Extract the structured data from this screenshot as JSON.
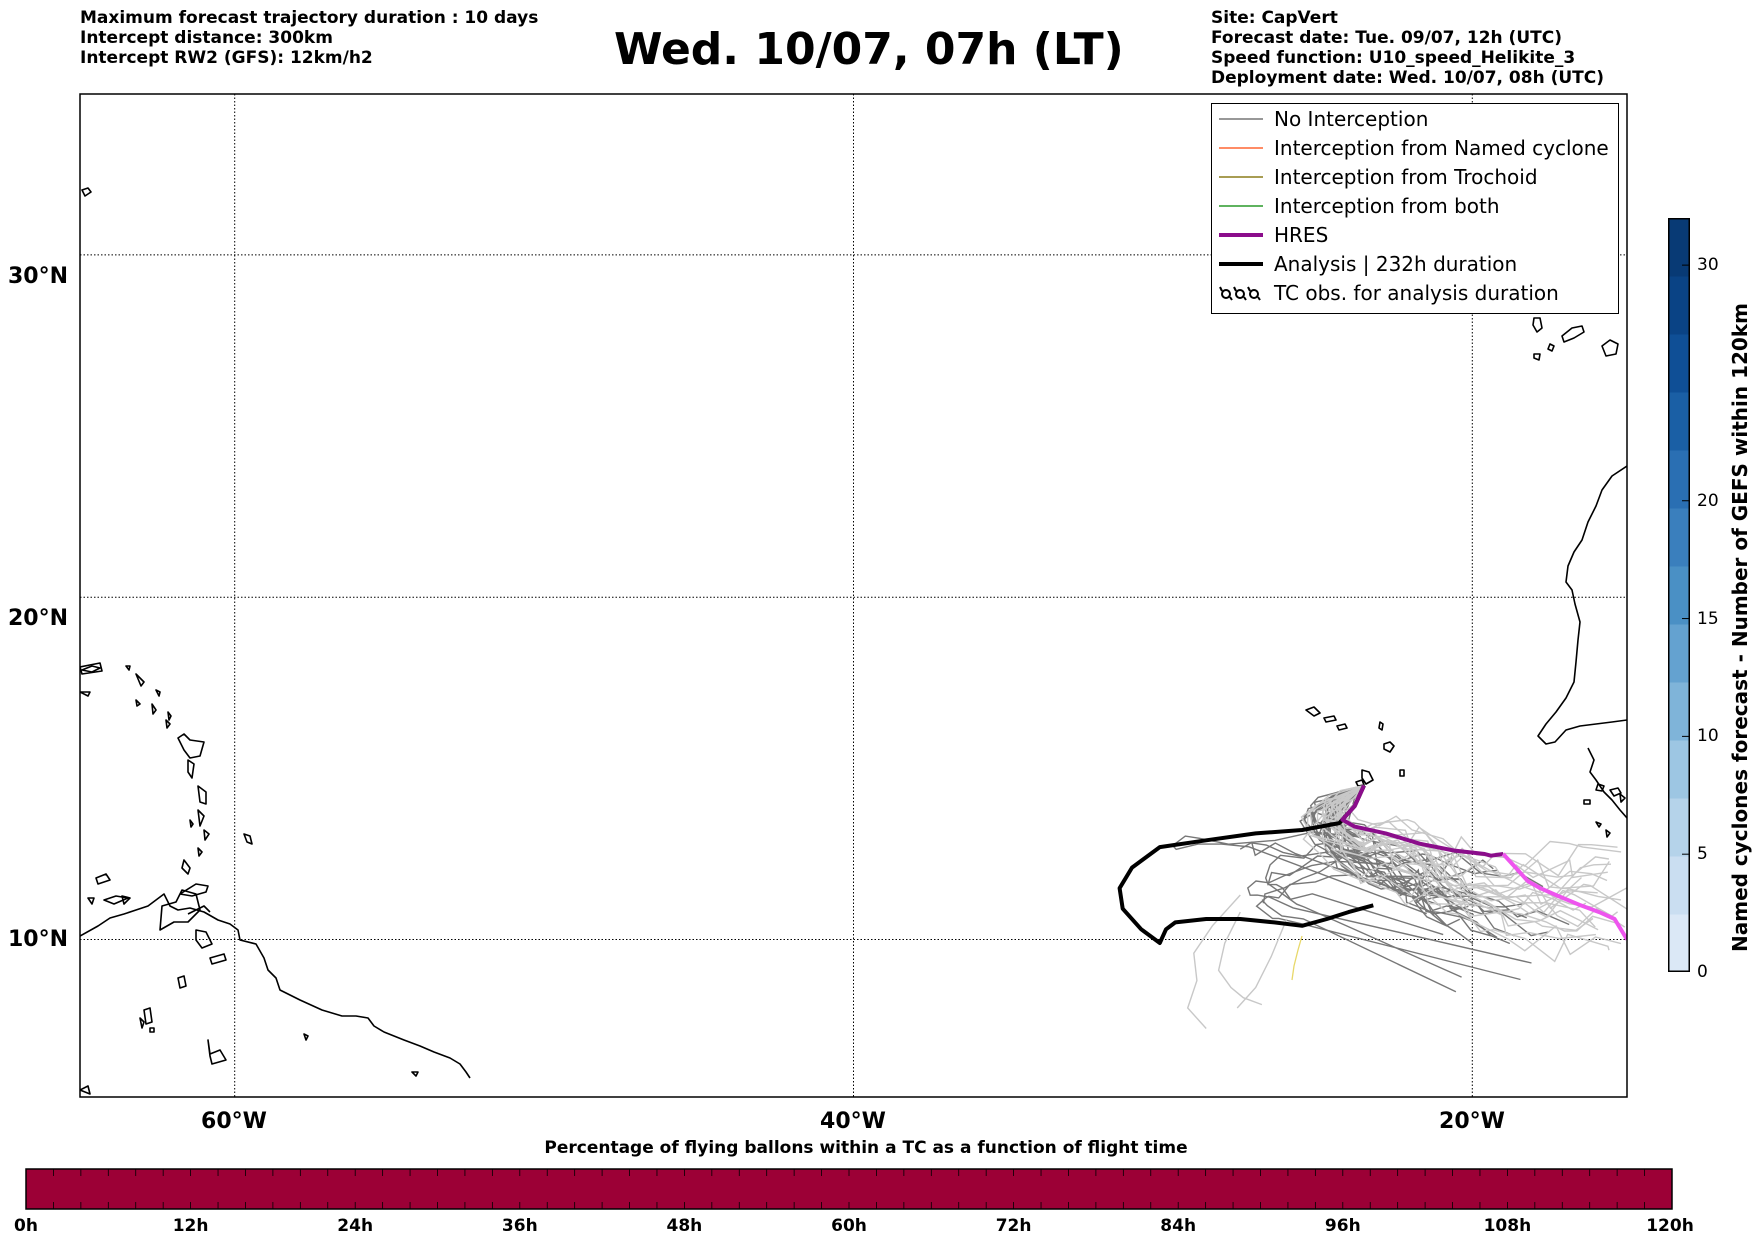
{
  "header": {
    "left_lines": [
      "Maximum forecast trajectory duration : 10 days",
      "Intercept distance: 300km",
      "Intercept RW2 (GFS):  12km/h2"
    ],
    "title": "Wed. 10/07, 07h (LT)",
    "right_lines": [
      "Site: CapVert",
      "Forecast date: Tue. 09/07, 12h (UTC)",
      "Speed function: U10_speed_Helikite_3",
      "Deployment date: Wed. 10/07, 08h (UTC)"
    ]
  },
  "map": {
    "lat_labels": [
      "30°N",
      "20°N",
      "10°N"
    ],
    "lon_labels": [
      "60°W",
      "40°W",
      "20°W"
    ],
    "lat_values": [
      30,
      20,
      10
    ],
    "lon_values": [
      -60,
      -40,
      -20
    ],
    "extent": {
      "lon_min": -65,
      "lon_max": -15,
      "lat_min": 5.4,
      "lat_max": 34.7
    },
    "trajectory_groups": [
      {
        "name": "gefs-near",
        "color": "#777777",
        "count": 30
      },
      {
        "name": "gefs-far",
        "color": "#c8c8c8",
        "count": 22
      }
    ],
    "analysis_track": {
      "color": "#000000",
      "points": [
        [
          -23.5,
          14.5
        ],
        [
          -23.8,
          13.9
        ],
        [
          -24.3,
          13.4
        ],
        [
          -25.5,
          13.2
        ],
        [
          -27,
          13.1
        ],
        [
          -28.6,
          12.9
        ],
        [
          -30.1,
          12.7
        ],
        [
          -31,
          12.1
        ],
        [
          -31.4,
          11.5
        ],
        [
          -31.3,
          10.9
        ],
        [
          -30.7,
          10.3
        ],
        [
          -30.1,
          9.9
        ],
        [
          -29.9,
          10.3
        ],
        [
          -29.6,
          10.5
        ],
        [
          -28.6,
          10.6
        ],
        [
          -27.5,
          10.6
        ],
        [
          -26.4,
          10.5
        ],
        [
          -25.5,
          10.4
        ],
        [
          -24.7,
          10.6
        ],
        [
          -24,
          10.8
        ],
        [
          -23.2,
          11.0
        ]
      ]
    },
    "hres_track": {
      "color_dark": "#8b0d8b",
      "color_light": "#ee55ee",
      "points": [
        [
          -23.5,
          14.5
        ],
        [
          -23.8,
          13.9
        ],
        [
          -24.2,
          13.5
        ],
        [
          -23.8,
          13.3
        ],
        [
          -22.8,
          13.1
        ],
        [
          -21.7,
          12.8
        ],
        [
          -20.6,
          12.6
        ],
        [
          -19.6,
          12.5
        ],
        [
          -19.4,
          12.45
        ],
        [
          -19.0,
          12.5
        ],
        [
          -18.6,
          12.1
        ],
        [
          -18.2,
          11.7
        ],
        [
          -17.8,
          11.5
        ],
        [
          -17.3,
          11.3
        ],
        [
          -16.5,
          11.0
        ],
        [
          -15.9,
          10.8
        ],
        [
          -15.4,
          10.6
        ],
        [
          -15.0,
          10.0
        ]
      ]
    }
  },
  "legend": {
    "items": [
      {
        "label": "No Interception",
        "color": "#777777",
        "width": 1.5,
        "kind": "line"
      },
      {
        "label": "Interception from Named cyclone",
        "color": "#ff6633",
        "width": 1.5,
        "kind": "line"
      },
      {
        "label": "Interception from Trochoid",
        "color": "#8b7d1a",
        "width": 1.5,
        "kind": "line"
      },
      {
        "label": "Interception from both",
        "color": "#2a9a2a",
        "width": 1.5,
        "kind": "line"
      },
      {
        "label": "HRES",
        "color": "#8b0d8b",
        "width": 4,
        "kind": "line"
      },
      {
        "label": "Analysis | 232h duration",
        "color": "#000000",
        "width": 4,
        "kind": "line"
      },
      {
        "label": "TC obs. for analysis duration",
        "color": "#000000",
        "width": 2,
        "kind": "cyclone-symbols"
      }
    ]
  },
  "right_colorbar": {
    "label": "Named cyclones forecast - Number of GEFS within 120km",
    "ticks": [
      "0",
      "5",
      "10",
      "15",
      "20",
      "30"
    ],
    "tick_values": [
      0,
      5,
      10,
      15,
      20,
      30
    ],
    "max": 32,
    "colors": [
      "#dbe8f6",
      "#cadef1",
      "#b5d3ea",
      "#9dc6e3",
      "#7fb4d9",
      "#64a2d0",
      "#4a90c5",
      "#3a7fbd",
      "#2a6fb3",
      "#1a5fa5",
      "#0f4f96",
      "#0a4385",
      "#083a75"
    ]
  },
  "bottom_colorbar": {
    "title": "Percentage of flying ballons within a TC as a function of flight time",
    "ticks": [
      "0h",
      "12h",
      "24h",
      "36h",
      "48h",
      "60h",
      "72h",
      "84h",
      "96h",
      "108h",
      "120h"
    ],
    "color": "#9c0036"
  }
}
